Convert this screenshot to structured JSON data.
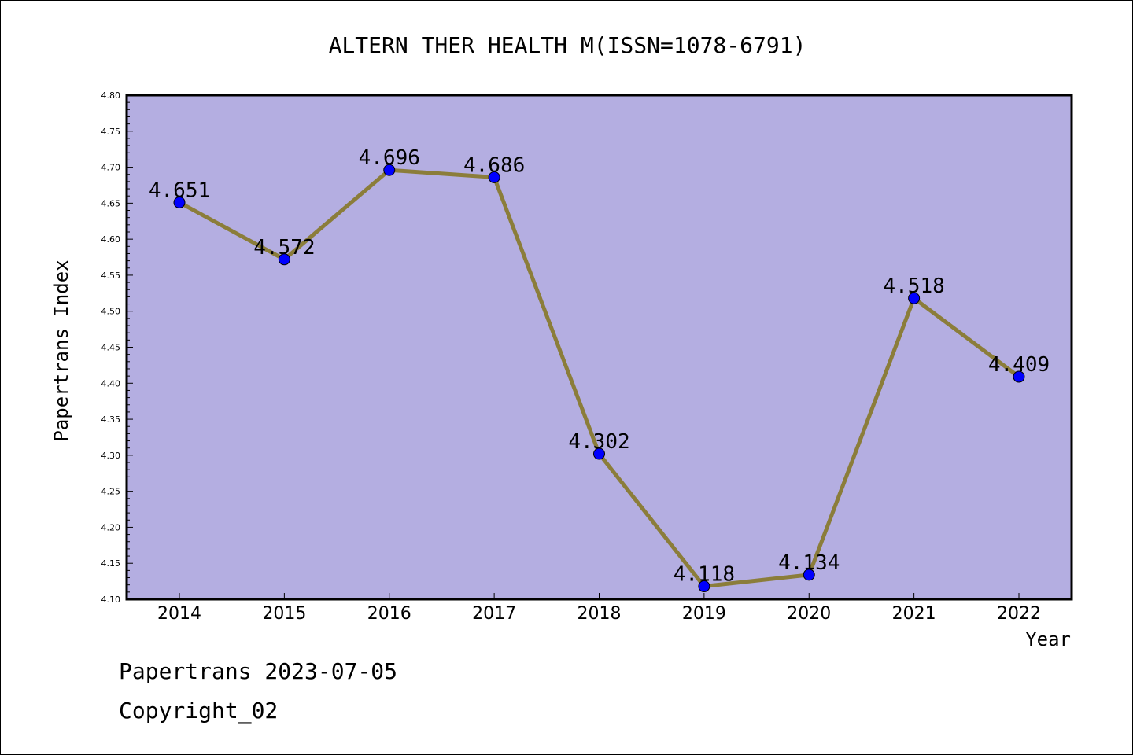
{
  "chart_data": {
    "type": "line",
    "title": "ALTERN THER HEALTH M(ISSN=1078-6791)",
    "xlabel": "Year",
    "ylabel": "Papertrans Index",
    "categories": [
      "2014",
      "2015",
      "2016",
      "2017",
      "2018",
      "2019",
      "2020",
      "2021",
      "2022"
    ],
    "series": [
      {
        "values": [
          4.651,
          4.572,
          4.696,
          4.686,
          4.302,
          4.118,
          4.134,
          4.518,
          4.409
        ],
        "labels": [
          "4.651",
          "4.572",
          "4.696",
          "4.686",
          "4.302",
          "4.118",
          "4.134",
          "4.518",
          "4.409"
        ]
      }
    ],
    "ylim": [
      4.1,
      4.8
    ],
    "yticks": [
      "4.10",
      "4.15",
      "4.20",
      "4.25",
      "4.30",
      "4.35",
      "4.40",
      "4.45",
      "4.50",
      "4.55",
      "4.60",
      "4.65",
      "4.70",
      "4.75",
      "4.80"
    ],
    "grid": false,
    "colors": {
      "plot_background": "#b4aee1",
      "line": "#8b7d3a",
      "marker": "#0000ff"
    }
  },
  "footer": {
    "date_line": "Papertrans 2023-07-05",
    "copyright_line": "Copyright_02"
  }
}
